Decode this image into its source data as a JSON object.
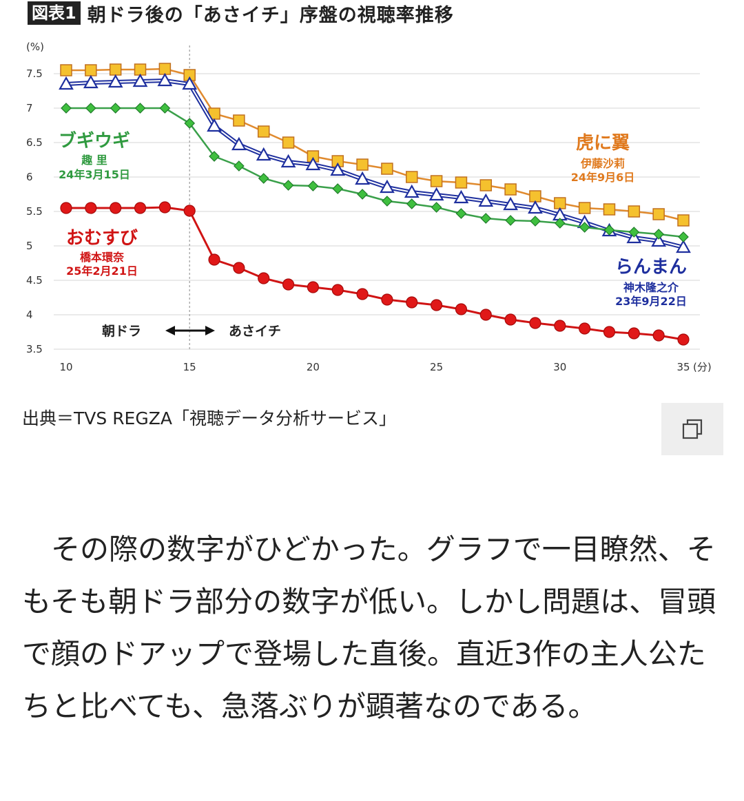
{
  "figure": {
    "badge": "図表1",
    "title": "朝ドラ後の「あさイチ」序盤の視聴率推移"
  },
  "chart_data": {
    "type": "line",
    "ylabel": "(%)",
    "xlabel": "(分)",
    "xlim": [
      10,
      35
    ],
    "ylim": [
      3.5,
      7.5
    ],
    "x_ticks": [
      "10",
      "15",
      "20",
      "25",
      "30",
      "35"
    ],
    "y_ticks": [
      "3.5",
      "4",
      "4.5",
      "5",
      "5.5",
      "6",
      "6.5",
      "7",
      "7.5"
    ],
    "grid": true,
    "divider_x": 15,
    "series": [
      {
        "name": "虎に翼",
        "sub1": "伊藤沙莉",
        "sub2": "24年9月6日",
        "color": "#e08a2e",
        "fill": "#f5c12e",
        "marker": "square",
        "x": [
          10,
          11,
          12,
          13,
          14,
          15,
          16,
          17,
          18,
          19,
          20,
          21,
          22,
          23,
          24,
          25,
          26,
          27,
          28,
          29,
          30,
          31,
          32,
          33,
          34,
          35
        ],
        "y": [
          7.55,
          7.55,
          7.56,
          7.56,
          7.57,
          7.48,
          6.92,
          6.82,
          6.66,
          6.5,
          6.3,
          6.23,
          6.18,
          6.12,
          6.0,
          5.94,
          5.92,
          5.88,
          5.82,
          5.72,
          5.62,
          5.55,
          5.53,
          5.5,
          5.46,
          5.37
        ]
      },
      {
        "name": "らんまん",
        "sub1": "神木隆之介",
        "sub2": "23年9月22日",
        "color": "#1e2f9e",
        "fill": "#ffffff",
        "marker": "triangle",
        "x": [
          10,
          11,
          12,
          13,
          14,
          15,
          16,
          17,
          18,
          19,
          20,
          21,
          22,
          23,
          24,
          25,
          26,
          27,
          28,
          29,
          30,
          31,
          32,
          33,
          34,
          35
        ],
        "y": [
          7.35,
          7.37,
          7.38,
          7.39,
          7.4,
          7.35,
          6.74,
          6.47,
          6.32,
          6.22,
          6.18,
          6.1,
          5.97,
          5.85,
          5.78,
          5.74,
          5.7,
          5.65,
          5.6,
          5.55,
          5.45,
          5.34,
          5.22,
          5.12,
          5.07,
          4.98
        ]
      },
      {
        "name": "ブギウギ",
        "sub1": "趣 里",
        "sub2": "24年3月15日",
        "color": "#3aa04a",
        "fill": "#3fbf3f",
        "marker": "diamond",
        "x": [
          10,
          11,
          12,
          13,
          14,
          15,
          16,
          17,
          18,
          19,
          20,
          21,
          22,
          23,
          24,
          25,
          26,
          27,
          28,
          29,
          30,
          31,
          32,
          33,
          34,
          35
        ],
        "y": [
          7.0,
          7.0,
          7.0,
          7.0,
          7.0,
          6.78,
          6.3,
          6.16,
          5.98,
          5.88,
          5.87,
          5.83,
          5.75,
          5.65,
          5.61,
          5.56,
          5.47,
          5.4,
          5.37,
          5.36,
          5.33,
          5.27,
          5.23,
          5.2,
          5.17,
          5.13
        ]
      },
      {
        "name": "おむすび",
        "sub1": "橋本環奈",
        "sub2": "25年2月21日",
        "color": "#d01414",
        "fill": "#e01818",
        "marker": "circle",
        "x": [
          10,
          11,
          12,
          13,
          14,
          15,
          16,
          17,
          18,
          19,
          20,
          21,
          22,
          23,
          24,
          25,
          26,
          27,
          28,
          29,
          30,
          31,
          32,
          33,
          34,
          35
        ],
        "y": [
          5.55,
          5.55,
          5.55,
          5.55,
          5.56,
          5.51,
          4.8,
          4.68,
          4.53,
          4.44,
          4.4,
          4.36,
          4.3,
          4.22,
          4.18,
          4.14,
          4.08,
          4.0,
          3.93,
          3.88,
          3.84,
          3.8,
          3.75,
          3.73,
          3.7,
          3.64
        ]
      }
    ],
    "annotation": {
      "left": "朝ドラ",
      "right": "あさイチ"
    }
  },
  "source": "出典＝TVS REGZA「視聴データ分析サービス」",
  "copy_icon": "copy-icon",
  "article": {
    "paragraph": "その際の数字がひどかった。グラフで一目瞭然、そもそも朝ドラ部分の数字が低い。しかし問題は、冒頭で顔のドアップで登場した直後。直近3作の主人公たちと比べても、急落ぶりが顕著なのである。"
  }
}
